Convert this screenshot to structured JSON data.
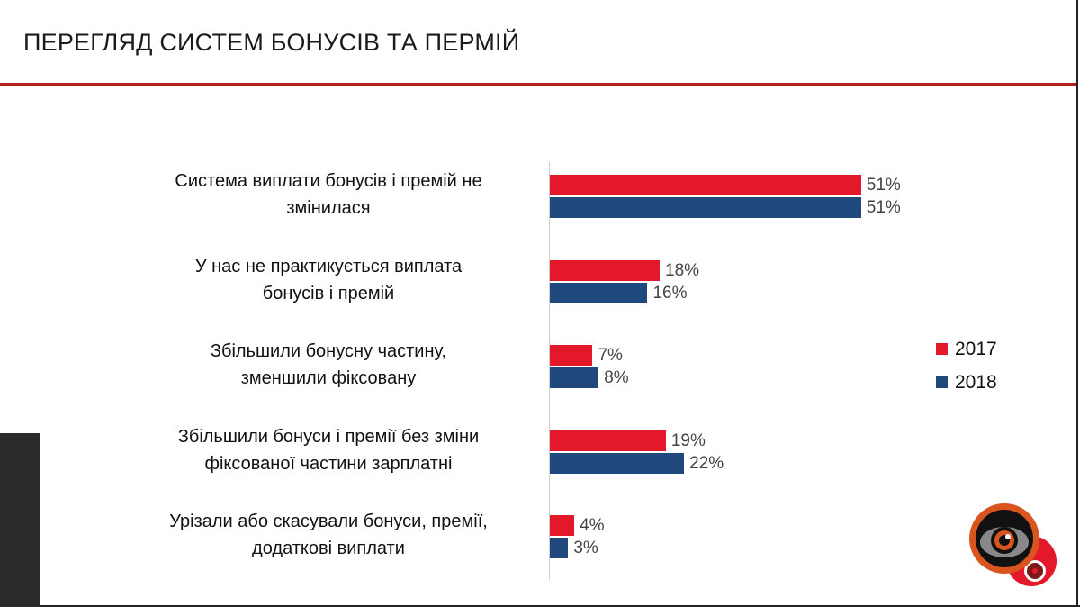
{
  "title": "ПЕРЕГЛЯД СИСТЕМ БОНУСІВ ТА ПЕРМІЙ",
  "chart_data": {
    "type": "bar",
    "orientation": "horizontal",
    "categories": [
      "Система виплати бонусів і премій не змінилася",
      "У нас не практикується виплата бонусів і премій",
      "Збільшили бонусну частину, зменшили фіксовану",
      "Збільшили бонуси і премії без зміни фіксованої частини зарплатні",
      "Урізали або скасували бонуси, премії, додаткові виплати"
    ],
    "category_lines": [
      [
        "Система виплати бонусів і премій не",
        "змінилася"
      ],
      [
        "У нас не практикується виплата",
        "бонусів і премій"
      ],
      [
        "Збільшили бонусну частину,",
        "зменшили фіксовану"
      ],
      [
        "Збільшили бонуси і премії без зміни",
        "фіксованої частини зарплатні"
      ],
      [
        "Урізали або скасували бонуси, премії,",
        "додаткові виплати"
      ]
    ],
    "series": [
      {
        "name": "2017",
        "color": "#e3192b",
        "values": [
          51,
          18,
          7,
          19,
          4
        ],
        "labels": [
          "51%",
          "18%",
          "7%",
          "19%",
          "4%"
        ]
      },
      {
        "name": "2018",
        "color": "#1f497d",
        "values": [
          51,
          16,
          8,
          22,
          3
        ],
        "labels": [
          "51%",
          "16%",
          "8%",
          "22%",
          "3%"
        ]
      }
    ],
    "unit": "%",
    "legend_position": "right",
    "grid": false
  }
}
